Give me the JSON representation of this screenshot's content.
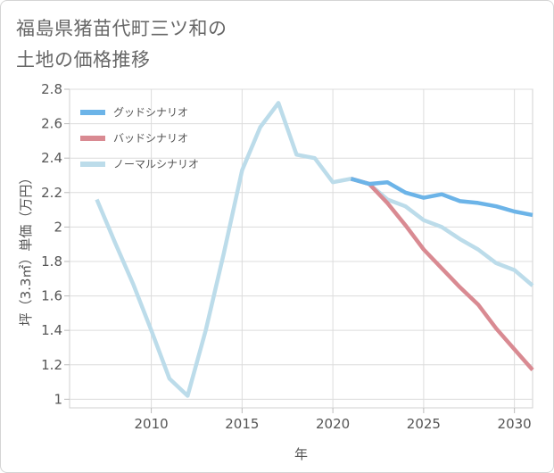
{
  "title_line1": "福島県猪苗代町三ツ和の",
  "title_line2": "土地の価格推移",
  "chart_data": {
    "type": "line",
    "title": "福島県猪苗代町三ツ和の土地の価格推移",
    "xlabel": "年",
    "ylabel": "坪（3.3㎡）単価（万円）",
    "xlim": [
      2005.5,
      2031
    ],
    "ylim": [
      0.95,
      2.8
    ],
    "xticks": [
      2010,
      2015,
      2020,
      2025,
      2030
    ],
    "yticks": [
      1,
      1.2,
      1.4,
      1.6,
      1.8,
      2,
      2.2,
      2.4,
      2.6,
      2.8
    ],
    "grid": true,
    "legend_position": "top-left",
    "series": [
      {
        "name": "グッドシナリオ",
        "color": "#6cb4e8",
        "x": [
          2021,
          2022,
          2023,
          2024,
          2025,
          2026,
          2027,
          2028,
          2029,
          2030,
          2031
        ],
        "y": [
          2.28,
          2.25,
          2.26,
          2.2,
          2.17,
          2.19,
          2.15,
          2.14,
          2.12,
          2.09,
          2.07
        ]
      },
      {
        "name": "バッドシナリオ",
        "color": "#d98a92",
        "x": [
          2021,
          2022,
          2023,
          2024,
          2025,
          2026,
          2027,
          2028,
          2029,
          2030,
          2031
        ],
        "y": [
          2.28,
          2.25,
          2.14,
          2.01,
          1.87,
          1.76,
          1.65,
          1.55,
          1.41,
          1.29,
          1.17
        ]
      },
      {
        "name": "ノーマルシナリオ",
        "color": "#bcdcea",
        "x": [
          2007,
          2008,
          2009,
          2010,
          2011,
          2012,
          2013,
          2014,
          2015,
          2016,
          2017,
          2018,
          2019,
          2020,
          2021,
          2022,
          2023,
          2024,
          2025,
          2026,
          2027,
          2028,
          2029,
          2030,
          2031
        ],
        "y": [
          2.16,
          1.91,
          1.67,
          1.4,
          1.12,
          1.02,
          1.4,
          1.85,
          2.33,
          2.58,
          2.72,
          2.42,
          2.4,
          2.26,
          2.28,
          2.25,
          2.16,
          2.12,
          2.04,
          2.0,
          1.93,
          1.87,
          1.79,
          1.75,
          1.66
        ]
      }
    ]
  }
}
